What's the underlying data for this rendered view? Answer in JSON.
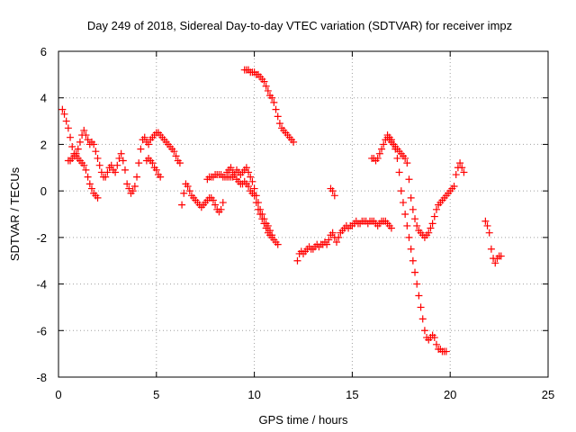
{
  "chart_data": {
    "type": "scatter",
    "title": "Day 249 of 2018, Sidereal Day-to-day VTEC variation (SDTVAR) for receiver impz",
    "xlabel": "GPS time / hours",
    "ylabel": "SDTVAR / TECUs",
    "xlim": [
      0,
      25
    ],
    "ylim": [
      -8,
      6
    ],
    "xticks": [
      "0",
      "5",
      "10",
      "15",
      "20",
      "25"
    ],
    "yticks": [
      "6",
      "4",
      "2",
      "0",
      "-2",
      "-4",
      "-6",
      "-8"
    ],
    "marker": "plus",
    "color": "#ff0000",
    "grid": true,
    "series": [
      {
        "name": "s1",
        "x": [
          0.2,
          0.3,
          0.4,
          0.5,
          0.6,
          0.7,
          0.8,
          0.9,
          1.0,
          1.1,
          1.2,
          1.3,
          1.4,
          1.5,
          1.6,
          1.7,
          1.8,
          1.9,
          2.0,
          2.1,
          2.2,
          2.3,
          2.4,
          2.5,
          2.6,
          2.7,
          2.8,
          2.9,
          3.0,
          3.1,
          3.2,
          3.3,
          3.4,
          3.5,
          3.6,
          3.7,
          3.8,
          3.9,
          4.0,
          4.1,
          4.2,
          4.3,
          4.4,
          4.5,
          4.6,
          4.7,
          4.8,
          4.9,
          5.0,
          5.1,
          5.2,
          5.3,
          5.4,
          5.5,
          5.6,
          5.7,
          5.8,
          5.9,
          6.0,
          6.1,
          6.2
        ],
        "y": [
          3.5,
          3.3,
          3.0,
          2.7,
          2.3,
          1.9,
          1.6,
          1.5,
          1.8,
          2.1,
          2.4,
          2.6,
          2.4,
          2.2,
          2.0,
          2.1,
          2.0,
          1.7,
          1.4,
          1.1,
          0.8,
          0.6,
          0.6,
          0.8,
          1.0,
          1.1,
          0.9,
          0.8,
          1.1,
          1.4,
          1.6,
          1.3,
          0.9,
          0.3,
          0.1,
          -0.1,
          0.0,
          0.2,
          0.6,
          1.2,
          1.8,
          2.2,
          2.3,
          2.1,
          2.0,
          2.2,
          2.3,
          2.4,
          2.5,
          2.5,
          2.4,
          2.3,
          2.2,
          2.1,
          2.0,
          1.9,
          1.8,
          1.7,
          1.5,
          1.3,
          1.2
        ]
      },
      {
        "name": "s2",
        "x": [
          0.5,
          0.6,
          0.7,
          0.8,
          0.9,
          1.0,
          1.1,
          1.2,
          1.3,
          1.4,
          1.5,
          1.6,
          1.7,
          1.8,
          1.9,
          2.0
        ],
        "y": [
          1.3,
          1.3,
          1.4,
          1.5,
          1.6,
          1.4,
          1.3,
          1.2,
          1.1,
          0.9,
          0.6,
          0.3,
          0.1,
          -0.1,
          -0.2,
          -0.3
        ]
      },
      {
        "name": "s3",
        "x": [
          4.5,
          4.6,
          4.7,
          4.8,
          4.9,
          5.0,
          5.1,
          5.2
        ],
        "y": [
          1.3,
          1.4,
          1.3,
          1.2,
          1.0,
          0.9,
          0.7,
          0.6
        ]
      },
      {
        "name": "s4",
        "x": [
          6.3,
          6.4,
          6.5,
          6.6,
          6.7,
          6.8,
          6.9,
          7.0,
          7.1,
          7.2,
          7.3,
          7.4,
          7.5,
          7.6,
          7.7,
          7.8,
          7.9,
          8.0,
          8.1,
          8.2,
          8.3,
          8.4
        ],
        "y": [
          -0.6,
          -0.1,
          0.3,
          0.2,
          0.0,
          -0.2,
          -0.3,
          -0.4,
          -0.5,
          -0.6,
          -0.7,
          -0.6,
          -0.5,
          -0.4,
          -0.3,
          -0.3,
          -0.4,
          -0.6,
          -0.8,
          -0.9,
          -0.8,
          -0.5
        ]
      },
      {
        "name": "s5",
        "x": [
          7.6,
          7.7,
          7.8,
          7.9,
          8.0,
          8.1,
          8.2,
          8.3,
          8.4,
          8.5,
          8.6,
          8.7,
          8.8,
          8.9,
          9.0,
          9.1,
          9.2,
          9.3,
          9.4,
          9.5,
          9.6,
          9.7,
          9.8,
          9.9,
          10.0,
          10.1,
          10.2,
          10.3,
          10.4,
          10.5,
          10.6,
          10.7,
          10.8,
          10.9,
          11.0,
          11.1,
          11.2
        ],
        "y": [
          0.5,
          0.6,
          0.6,
          0.6,
          0.7,
          0.7,
          0.7,
          0.7,
          0.6,
          0.6,
          0.6,
          0.6,
          0.6,
          0.6,
          0.7,
          0.5,
          0.4,
          0.3,
          0.3,
          0.4,
          0.3,
          0.2,
          0.0,
          -0.1,
          -0.2,
          -0.5,
          -0.8,
          -1.0,
          -1.2,
          -1.4,
          -1.6,
          -1.8,
          -1.9,
          -2.0,
          -2.1,
          -2.2,
          -2.3
        ]
      },
      {
        "name": "s6",
        "x": [
          8.6,
          8.7,
          8.8,
          8.9,
          9.0,
          9.1,
          9.2,
          9.3,
          9.4,
          9.5,
          9.6,
          9.7,
          9.8,
          9.9,
          10.0,
          10.1,
          10.2,
          10.3,
          10.4,
          10.5,
          10.6,
          10.7,
          10.8,
          10.9
        ],
        "y": [
          0.8,
          0.9,
          1.0,
          0.8,
          0.7,
          0.9,
          0.8,
          0.7,
          0.8,
          0.9,
          1.0,
          0.8,
          0.6,
          0.4,
          0.1,
          -0.2,
          -0.5,
          -0.8,
          -1.0,
          -1.2,
          -1.4,
          -1.5,
          -1.7,
          -1.9
        ]
      },
      {
        "name": "s7",
        "x": [
          9.5,
          9.6,
          9.7,
          9.8,
          9.9,
          10.0,
          10.1,
          10.2,
          10.3,
          10.4,
          10.5,
          10.6,
          10.7,
          10.8,
          10.9,
          11.0,
          11.1,
          11.2,
          11.3,
          11.4,
          11.5,
          11.6,
          11.7,
          11.8,
          11.9,
          12.0
        ],
        "y": [
          5.2,
          5.2,
          5.2,
          5.1,
          5.1,
          5.1,
          5.0,
          5.0,
          4.9,
          4.8,
          4.7,
          4.5,
          4.3,
          4.1,
          4.0,
          3.8,
          3.5,
          3.2,
          2.9,
          2.7,
          2.6,
          2.5,
          2.4,
          2.3,
          2.2,
          2.1
        ]
      },
      {
        "name": "s8",
        "x": [
          12.2,
          12.3,
          12.4,
          12.5,
          12.6,
          12.7,
          12.8,
          12.9,
          13.0,
          13.1,
          13.2,
          13.3,
          13.4,
          13.5,
          13.6,
          13.7,
          13.8,
          13.9,
          14.0,
          14.1,
          14.2,
          14.3,
          14.4,
          14.5,
          14.6,
          14.7,
          14.8,
          14.9,
          15.0,
          15.1,
          15.2,
          15.3,
          15.4,
          15.5,
          15.6,
          15.7,
          15.8,
          15.9,
          16.0,
          16.1,
          16.2,
          16.3,
          16.4,
          16.5,
          16.6,
          16.7,
          16.8,
          16.9,
          17.0
        ],
        "y": [
          -3.0,
          -2.7,
          -2.6,
          -2.7,
          -2.6,
          -2.5,
          -2.4,
          -2.5,
          -2.5,
          -2.4,
          -2.3,
          -2.4,
          -2.3,
          -2.3,
          -2.2,
          -2.3,
          -2.1,
          -1.9,
          -1.8,
          -2.0,
          -2.2,
          -2.0,
          -1.8,
          -1.7,
          -1.6,
          -1.5,
          -1.6,
          -1.5,
          -1.5,
          -1.4,
          -1.3,
          -1.4,
          -1.4,
          -1.3,
          -1.3,
          -1.3,
          -1.4,
          -1.3,
          -1.3,
          -1.3,
          -1.4,
          -1.5,
          -1.4,
          -1.3,
          -1.3,
          -1.3,
          -1.4,
          -1.5,
          -1.6
        ]
      },
      {
        "name": "s9",
        "x": [
          13.9,
          14.0,
          14.1
        ],
        "y": [
          0.1,
          0.0,
          -0.2
        ]
      },
      {
        "name": "s10",
        "x": [
          16.0,
          16.1,
          16.2,
          16.3,
          16.4,
          16.5,
          16.6,
          16.7,
          16.8,
          16.9,
          17.0,
          17.1,
          17.2,
          17.3,
          17.4,
          17.5,
          17.6,
          17.7,
          17.8,
          17.9,
          18.0,
          18.1,
          18.2,
          18.3,
          18.4,
          18.5,
          18.6,
          18.7,
          18.8,
          18.9,
          19.0,
          19.1,
          19.2,
          19.3,
          19.4,
          19.5,
          19.6,
          19.7,
          19.8
        ],
        "y": [
          1.4,
          1.4,
          1.3,
          1.4,
          1.6,
          1.8,
          2.0,
          2.2,
          2.4,
          2.3,
          2.2,
          2.0,
          1.8,
          1.4,
          0.8,
          0.0,
          -0.5,
          -1.0,
          -1.5,
          -2.0,
          -2.5,
          -3.0,
          -3.5,
          -4.0,
          -4.5,
          -5.0,
          -5.5,
          -6.0,
          -6.3,
          -6.4,
          -6.3,
          -6.2,
          -6.3,
          -6.6,
          -6.8,
          -6.8,
          -6.9,
          -6.9,
          -6.9
        ]
      },
      {
        "name": "s11",
        "x": [
          16.8,
          16.9,
          17.0,
          17.1,
          17.2,
          17.3,
          17.4,
          17.5,
          17.6,
          17.7,
          17.8,
          17.9,
          18.0,
          18.1,
          18.2,
          18.3,
          18.4,
          18.5,
          18.6,
          18.7,
          18.8,
          18.9,
          19.0,
          19.1,
          19.2,
          19.3,
          19.4,
          19.5,
          19.6,
          19.7,
          19.8,
          19.9,
          20.0,
          20.1,
          20.2
        ],
        "y": [
          2.3,
          2.2,
          2.1,
          2.0,
          1.9,
          1.8,
          1.7,
          1.6,
          1.5,
          1.4,
          1.2,
          0.5,
          -0.3,
          -0.8,
          -1.2,
          -1.5,
          -1.7,
          -1.8,
          -1.9,
          -2.0,
          -1.9,
          -1.8,
          -1.6,
          -1.4,
          -1.1,
          -0.8,
          -0.6,
          -0.5,
          -0.4,
          -0.3,
          -0.2,
          -0.1,
          0.0,
          0.1,
          0.2
        ]
      },
      {
        "name": "s12",
        "x": [
          20.3,
          20.4,
          20.5,
          20.6,
          20.7
        ],
        "y": [
          0.7,
          1.0,
          1.2,
          1.0,
          0.8
        ]
      },
      {
        "name": "s13",
        "x": [
          21.8,
          21.9,
          22.0,
          22.1,
          22.2,
          22.3,
          22.4,
          22.5,
          22.6
        ],
        "y": [
          -1.3,
          -1.5,
          -1.8,
          -2.5,
          -2.9,
          -3.1,
          -2.9,
          -2.8,
          -2.8
        ]
      }
    ]
  }
}
